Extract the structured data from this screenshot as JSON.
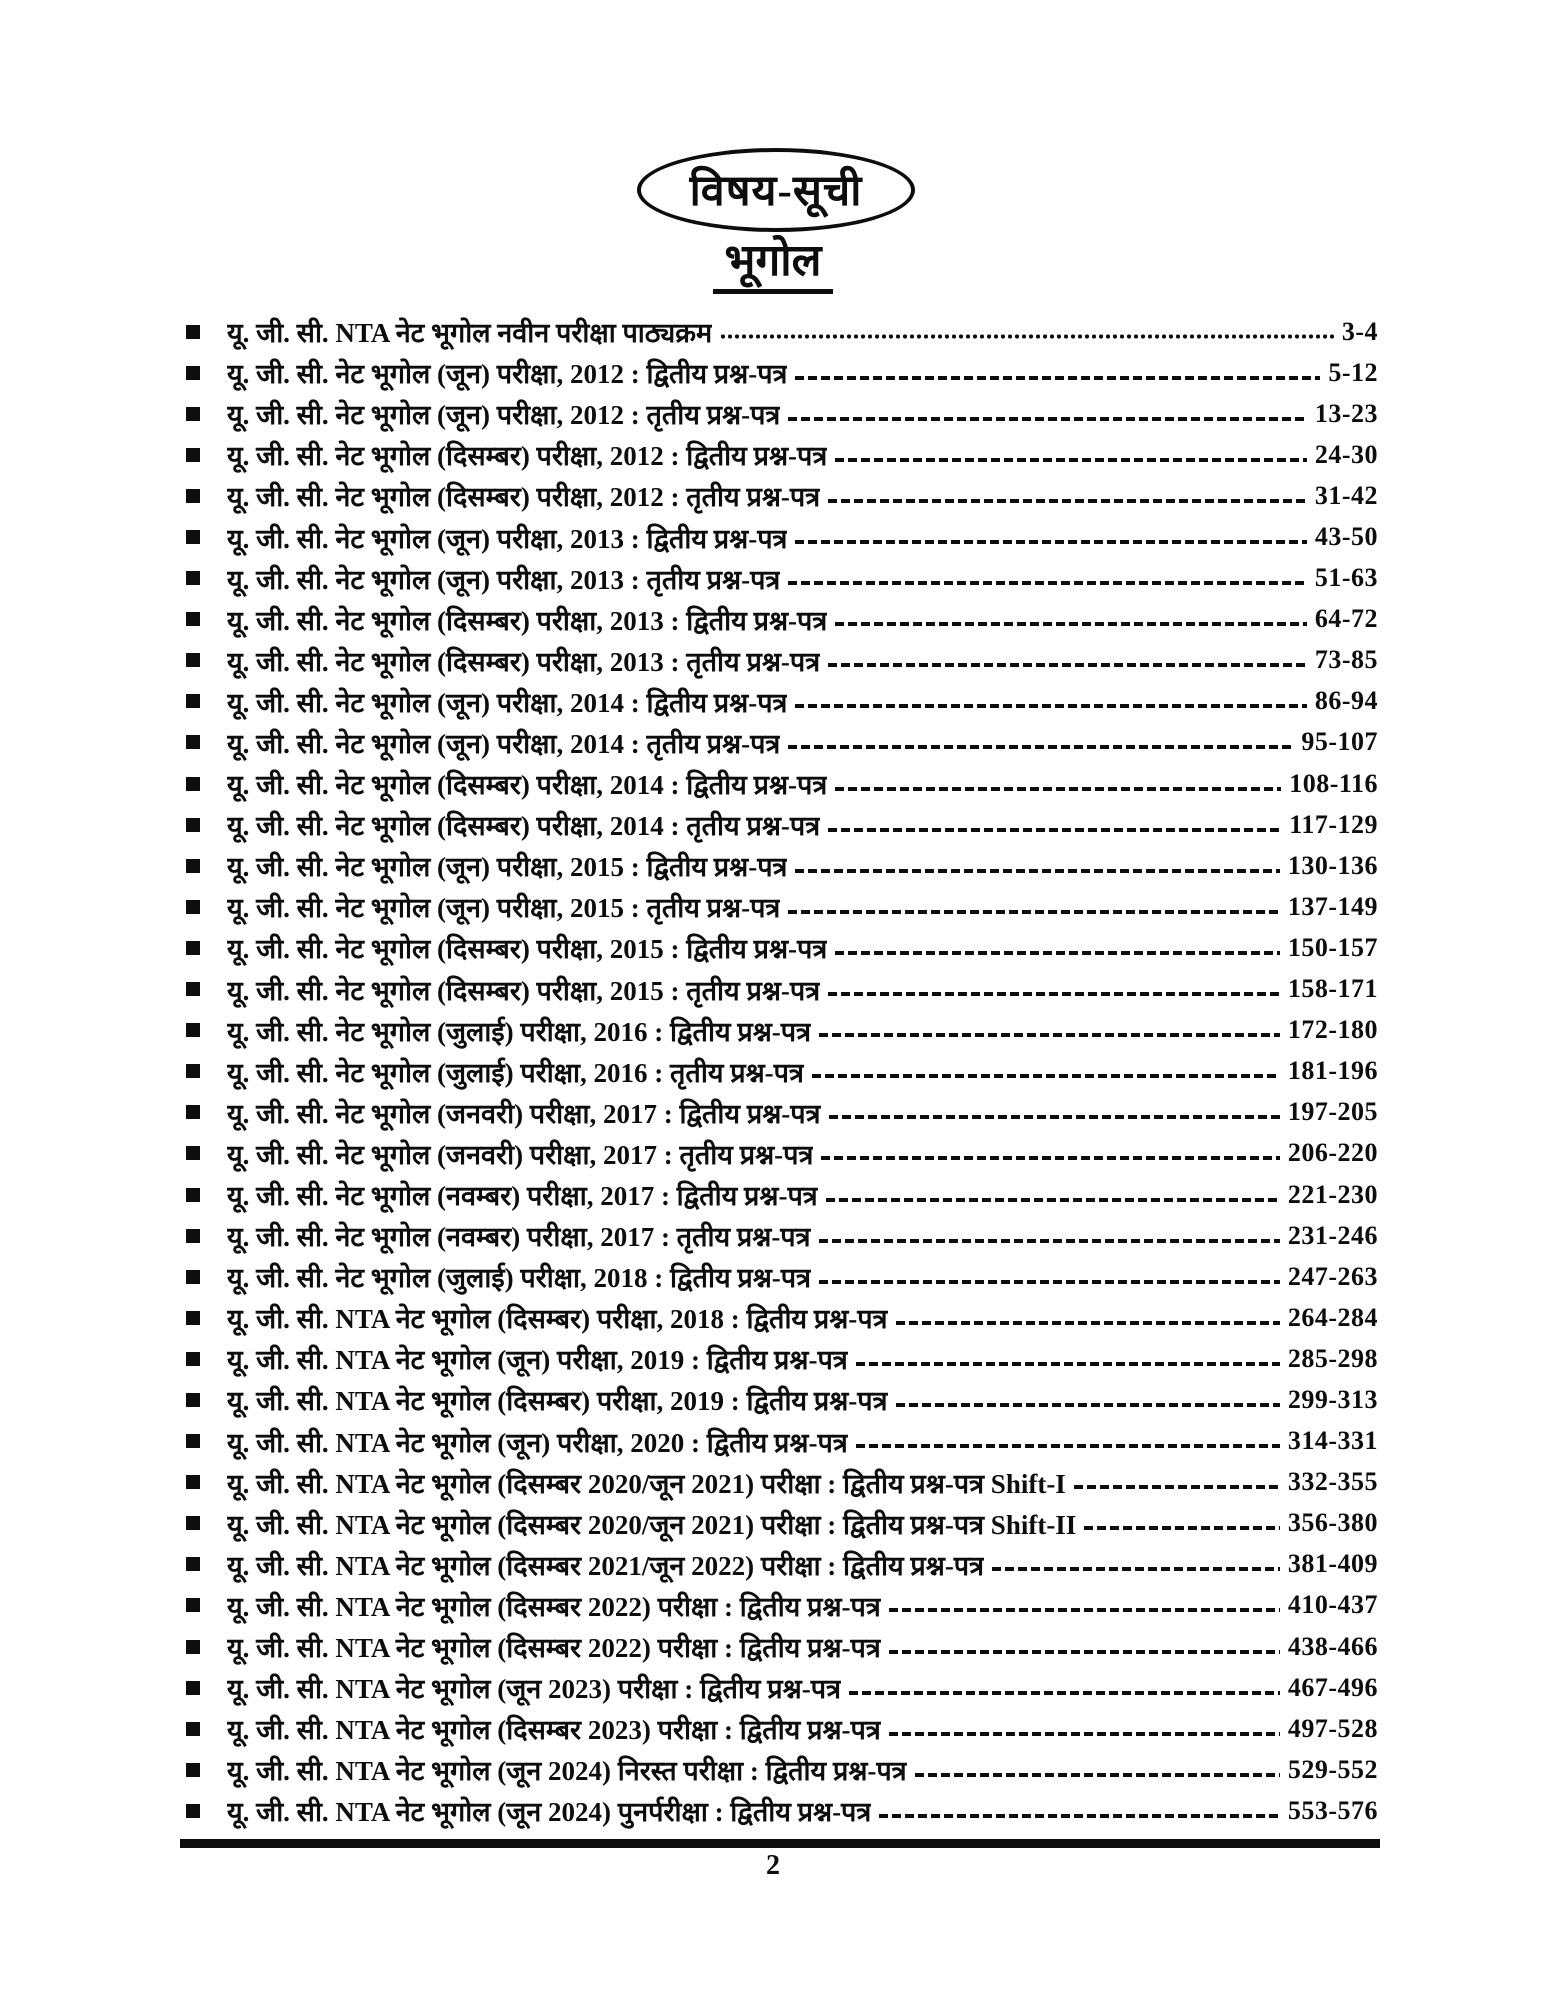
{
  "badge": {
    "label": "विषय-सूची"
  },
  "section": {
    "title": "भूगोल"
  },
  "toc": {
    "entries": [
      {
        "title": "यू. जी. सी. NTA नेट भूगोल नवीन परीक्षा पाठ्यक्रम",
        "pages": "3-4",
        "leader": "dots"
      },
      {
        "title": "यू. जी. सी. नेट भूगोल (जून) परीक्षा, 2012 : द्वितीय प्रश्न-पत्र",
        "pages": "5-12",
        "leader": "dashes"
      },
      {
        "title": "यू. जी. सी. नेट भूगोल (जून) परीक्षा, 2012 : तृतीय प्रश्न-पत्र",
        "pages": "13-23",
        "leader": "dashes"
      },
      {
        "title": "यू. जी. सी. नेट भूगोल (दिसम्बर) परीक्षा, 2012 : द्वितीय प्रश्न-पत्र",
        "pages": "24-30",
        "leader": "dashes"
      },
      {
        "title": "यू. जी. सी. नेट भूगोल (दिसम्बर) परीक्षा, 2012 : तृतीय प्रश्न-पत्र",
        "pages": "31-42",
        "leader": "dashes"
      },
      {
        "title": "यू. जी. सी. नेट भूगोल (जून) परीक्षा, 2013 : द्वितीय प्रश्न-पत्र",
        "pages": "43-50",
        "leader": "dashes"
      },
      {
        "title": "यू. जी. सी. नेट भूगोल (जून) परीक्षा, 2013 : तृतीय प्रश्न-पत्र",
        "pages": "51-63",
        "leader": "dashes"
      },
      {
        "title": "यू. जी. सी. नेट भूगोल (दिसम्बर) परीक्षा, 2013 : द्वितीय प्रश्न-पत्र",
        "pages": "64-72",
        "leader": "dashes"
      },
      {
        "title": "यू. जी. सी. नेट भूगोल (दिसम्बर) परीक्षा, 2013 : तृतीय प्रश्न-पत्र",
        "pages": "73-85",
        "leader": "dashes"
      },
      {
        "title": "यू. जी. सी. नेट भूगोल (जून) परीक्षा, 2014 : द्वितीय प्रश्न-पत्र",
        "pages": "86-94",
        "leader": "dashes"
      },
      {
        "title": "यू. जी. सी. नेट भूगोल (जून) परीक्षा, 2014 : तृतीय प्रश्न-पत्र",
        "pages": "95-107",
        "leader": "dashes"
      },
      {
        "title": "यू. जी. सी. नेट भूगोल (दिसम्बर) परीक्षा, 2014 : द्वितीय प्रश्न-पत्र",
        "pages": "108-116",
        "leader": "dashes"
      },
      {
        "title": "यू. जी. सी. नेट भूगोल (दिसम्बर) परीक्षा, 2014 : तृतीय प्रश्न-पत्र",
        "pages": "117-129",
        "leader": "dashes"
      },
      {
        "title": "यू. जी. सी. नेट भूगोल (जून) परीक्षा, 2015 : द्वितीय प्रश्न-पत्र",
        "pages": "130-136",
        "leader": "dashes"
      },
      {
        "title": "यू. जी. सी. नेट भूगोल (जून) परीक्षा, 2015 : तृतीय प्रश्न-पत्र",
        "pages": "137-149",
        "leader": "dashes"
      },
      {
        "title": "यू. जी. सी. नेट भूगोल (दिसम्बर) परीक्षा, 2015 : द्वितीय प्रश्न-पत्र",
        "pages": "150-157",
        "leader": "dashes"
      },
      {
        "title": "यू. जी. सी. नेट भूगोल (दिसम्बर) परीक्षा, 2015 : तृतीय प्रश्न-पत्र",
        "pages": "158-171",
        "leader": "dashes"
      },
      {
        "title": "यू. जी. सी. नेट भूगोल (जुलाई) परीक्षा, 2016 : द्वितीय प्रश्न-पत्र",
        "pages": "172-180",
        "leader": "dashes"
      },
      {
        "title": "यू. जी. सी. नेट भूगोल (जुलाई) परीक्षा, 2016 : तृतीय प्रश्न-पत्र",
        "pages": "181-196",
        "leader": "dashes"
      },
      {
        "title": "यू. जी. सी. नेट भूगोल (जनवरी) परीक्षा, 2017 : द्वितीय प्रश्न-पत्र",
        "pages": "197-205",
        "leader": "dashes"
      },
      {
        "title": "यू. जी. सी. नेट भूगोल (जनवरी) परीक्षा, 2017 : तृतीय प्रश्न-पत्र",
        "pages": "206-220",
        "leader": "dashes"
      },
      {
        "title": "यू. जी. सी. नेट भूगोल (नवम्बर) परीक्षा, 2017 : द्वितीय प्रश्न-पत्र",
        "pages": "221-230",
        "leader": "dashes"
      },
      {
        "title": "यू. जी. सी. नेट भूगोल (नवम्बर) परीक्षा, 2017 : तृतीय प्रश्न-पत्र",
        "pages": "231-246",
        "leader": "dashes"
      },
      {
        "title": "यू. जी. सी. नेट भूगोल (जुलाई) परीक्षा, 2018 : द्वितीय प्रश्न-पत्र",
        "pages": "247-263",
        "leader": "dashes"
      },
      {
        "title": "यू. जी. सी. NTA नेट भूगोल (दिसम्बर) परीक्षा, 2018 : द्वितीय प्रश्न-पत्र",
        "pages": "264-284",
        "leader": "dashes"
      },
      {
        "title": "यू. जी. सी. NTA नेट भूगोल (जून) परीक्षा, 2019 : द्वितीय प्रश्न-पत्र",
        "pages": "285-298",
        "leader": "dashes"
      },
      {
        "title": "यू. जी. सी. NTA नेट भूगोल (दिसम्बर) परीक्षा, 2019 : द्वितीय प्रश्न-पत्र",
        "pages": "299-313",
        "leader": "dashes"
      },
      {
        "title": "यू. जी. सी. NTA नेट भूगोल (जून) परीक्षा, 2020 : द्वितीय प्रश्न-पत्र",
        "pages": "314-331",
        "leader": "dashes"
      },
      {
        "title": "यू. जी. सी. NTA नेट भूगोल (दिसम्बर 2020/जून 2021) परीक्षा : द्वितीय प्रश्न-पत्र Shift-I",
        "pages": "332-355",
        "leader": "dashes"
      },
      {
        "title": "यू. जी. सी. NTA नेट भूगोल (दिसम्बर 2020/जून 2021) परीक्षा : द्वितीय प्रश्न-पत्र Shift-II",
        "pages": "356-380",
        "leader": "dashes"
      },
      {
        "title": "यू. जी. सी. NTA नेट भूगोल (दिसम्बर 2021/जून 2022) परीक्षा : द्वितीय प्रश्न-पत्र",
        "pages": "381-409",
        "leader": "dashes"
      },
      {
        "title": "यू. जी. सी. NTA नेट भूगोल (दिसम्बर 2022) परीक्षा : द्वितीय प्रश्न-पत्र",
        "pages": "410-437",
        "leader": "dashes"
      },
      {
        "title": "यू. जी. सी. NTA नेट भूगोल (दिसम्बर 2022) परीक्षा : द्वितीय प्रश्न-पत्र",
        "pages": "438-466",
        "leader": "dashes"
      },
      {
        "title": "यू. जी. सी. NTA नेट भूगोल (जून 2023) परीक्षा : द्वितीय प्रश्न-पत्र",
        "pages": "467-496",
        "leader": "dashes"
      },
      {
        "title": "यू. जी. सी. NTA नेट भूगोल (दिसम्बर 2023) परीक्षा : द्वितीय प्रश्न-पत्र",
        "pages": "497-528",
        "leader": "dashes"
      },
      {
        "title": "यू. जी. सी. NTA नेट भूगोल (जून 2024) निरस्त परीक्षा : द्वितीय प्रश्न-पत्र",
        "pages": "529-552",
        "leader": "dashes"
      },
      {
        "title": "यू. जी. सी. NTA नेट भूगोल (जून 2024) पुनर्परीक्षा : द्वितीय प्रश्न-पत्र",
        "pages": "553-576",
        "leader": "dashes"
      }
    ]
  },
  "footer": {
    "page_number": "2"
  }
}
